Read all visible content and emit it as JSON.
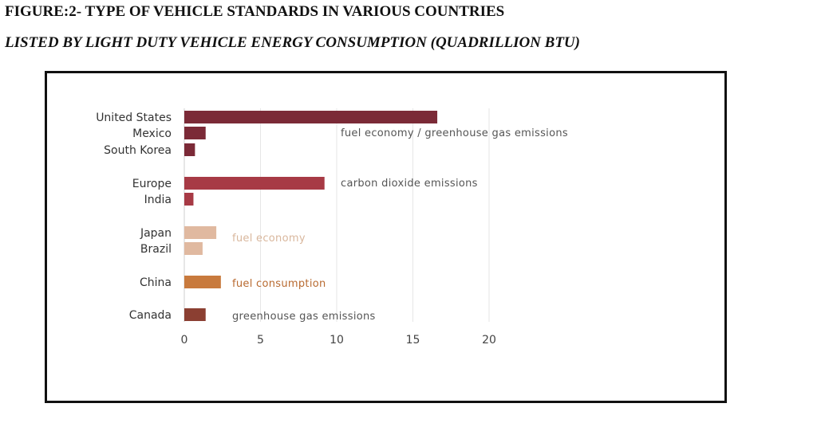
{
  "figure": {
    "title": "FIGURE:2- TYPE OF VEHICLE STANDARDS IN VARIOUS COUNTRIES",
    "subtitle": "LISTED BY LIGHT DUTY VEHICLE ENERGY CONSUMPTION (QUADRILLION BTU)"
  },
  "chart_data": {
    "type": "bar",
    "orientation": "horizontal",
    "categories": [
      "United States",
      "Mexico",
      "South Korea",
      "Europe",
      "India",
      "Japan",
      "Brazil",
      "China",
      "Canada"
    ],
    "values": [
      16.6,
      1.4,
      0.7,
      9.2,
      0.6,
      2.1,
      1.2,
      2.4,
      1.4
    ],
    "standard_type": [
      "fuel economy / greenhouse gas emissions",
      "fuel economy / greenhouse gas emissions",
      "fuel economy / greenhouse gas emissions",
      "carbon dioxide emissions",
      "carbon dioxide emissions",
      "fuel economy",
      "fuel economy",
      "fuel consumption",
      "greenhouse gas emissions"
    ],
    "groups": [
      {
        "label": "fuel economy / greenhouse gas emissions",
        "categories": [
          "United States",
          "Mexico",
          "South Korea"
        ],
        "color": "#7b2a37"
      },
      {
        "label": "carbon dioxide emissions",
        "categories": [
          "Europe",
          "India"
        ],
        "color": "#a73a45"
      },
      {
        "label": "fuel economy",
        "categories": [
          "Japan",
          "Brazil"
        ],
        "color": "#e0b9a0"
      },
      {
        "label": "fuel consumption",
        "categories": [
          "China"
        ],
        "color": "#c87a3d"
      },
      {
        "label": "greenhouse gas emissions",
        "categories": [
          "Canada"
        ],
        "color": "#8b3f32"
      }
    ],
    "xticks": [
      0,
      5,
      10,
      15,
      20
    ],
    "xlim": [
      0,
      20
    ],
    "grid": true,
    "xlabel": "",
    "ylabel": ""
  }
}
